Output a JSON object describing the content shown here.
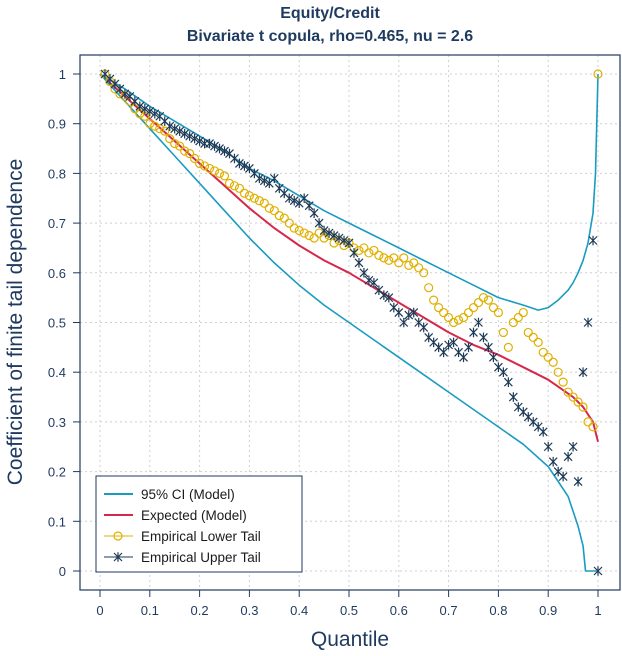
{
  "chart_data": {
    "type": "line",
    "title": "Equity/Credit",
    "subtitle": "Bivariate t copula, rho=0.465, nu = 2.6",
    "xlabel": "Quantile",
    "ylabel": "Coefficient of finite tail dependence",
    "xlim": [
      0,
      1
    ],
    "ylim": [
      0,
      1
    ],
    "x_ticks": [
      "0",
      "0.1",
      "0.2",
      "0.3",
      "0.4",
      "0.5",
      "0.6",
      "0.7",
      "0.8",
      "0.9",
      "1"
    ],
    "y_ticks": [
      "0",
      "0.1",
      "0.2",
      "0.3",
      "0.4",
      "0.5",
      "0.6",
      "0.7",
      "0.8",
      "0.9",
      "1"
    ],
    "grid": true,
    "legend_position": "bottom-left",
    "legend": [
      {
        "label": "95% CI (Model)",
        "color": "#1a9bc0",
        "marker": "line"
      },
      {
        "label": "Expected (Model)",
        "color": "#d6284a",
        "marker": "line"
      },
      {
        "label": "Empirical Lower Tail",
        "color": "#e0b000",
        "marker": "circle"
      },
      {
        "label": "Empirical Upper Tail",
        "color": "#1e3a56",
        "marker": "star"
      }
    ],
    "series": [
      {
        "name": "Expected (Model)",
        "x": [
          0,
          0.05,
          0.1,
          0.15,
          0.2,
          0.25,
          0.3,
          0.35,
          0.4,
          0.45,
          0.5,
          0.55,
          0.6,
          0.65,
          0.7,
          0.75,
          0.8,
          0.85,
          0.9,
          0.95,
          0.97,
          0.99,
          1.0
        ],
        "y": [
          1.0,
          0.955,
          0.91,
          0.865,
          0.82,
          0.775,
          0.73,
          0.69,
          0.655,
          0.625,
          0.6,
          0.57,
          0.54,
          0.51,
          0.48,
          0.455,
          0.435,
          0.41,
          0.385,
          0.35,
          0.33,
          0.3,
          0.26
        ]
      },
      {
        "name": "95% CI Upper (Model)",
        "x": [
          0,
          0.05,
          0.1,
          0.15,
          0.2,
          0.25,
          0.3,
          0.35,
          0.4,
          0.45,
          0.5,
          0.55,
          0.6,
          0.65,
          0.7,
          0.75,
          0.8,
          0.85,
          0.88,
          0.9,
          0.92,
          0.94,
          0.95,
          0.96,
          0.97,
          0.98,
          0.99,
          0.995,
          1.0
        ],
        "y": [
          1.0,
          0.97,
          0.935,
          0.905,
          0.875,
          0.845,
          0.81,
          0.785,
          0.755,
          0.725,
          0.7,
          0.675,
          0.65,
          0.625,
          0.6,
          0.575,
          0.55,
          0.535,
          0.525,
          0.53,
          0.545,
          0.565,
          0.58,
          0.6,
          0.625,
          0.66,
          0.72,
          0.8,
          1.0
        ]
      },
      {
        "name": "95% CI Lower (Model)",
        "x": [
          0,
          0.05,
          0.1,
          0.15,
          0.2,
          0.25,
          0.3,
          0.35,
          0.4,
          0.45,
          0.5,
          0.55,
          0.6,
          0.65,
          0.7,
          0.75,
          0.8,
          0.85,
          0.9,
          0.92,
          0.94,
          0.95,
          0.96,
          0.97,
          0.975,
          0.98,
          0.99,
          1.0
        ],
        "y": [
          1.0,
          0.945,
          0.89,
          0.835,
          0.78,
          0.725,
          0.67,
          0.62,
          0.575,
          0.535,
          0.5,
          0.465,
          0.43,
          0.395,
          0.36,
          0.325,
          0.29,
          0.255,
          0.21,
          0.18,
          0.15,
          0.12,
          0.09,
          0.05,
          0.0,
          0.0,
          0.0,
          0.0
        ]
      },
      {
        "name": "Empirical Lower Tail",
        "x": [
          0.01,
          0.02,
          0.03,
          0.04,
          0.05,
          0.06,
          0.07,
          0.08,
          0.09,
          0.1,
          0.11,
          0.12,
          0.13,
          0.14,
          0.15,
          0.16,
          0.17,
          0.18,
          0.19,
          0.2,
          0.21,
          0.22,
          0.23,
          0.24,
          0.25,
          0.26,
          0.27,
          0.28,
          0.29,
          0.3,
          0.31,
          0.32,
          0.33,
          0.34,
          0.35,
          0.36,
          0.37,
          0.38,
          0.39,
          0.4,
          0.41,
          0.42,
          0.43,
          0.44,
          0.45,
          0.46,
          0.47,
          0.48,
          0.49,
          0.5,
          0.51,
          0.52,
          0.53,
          0.54,
          0.55,
          0.56,
          0.57,
          0.58,
          0.59,
          0.6,
          0.61,
          0.62,
          0.63,
          0.64,
          0.65,
          0.66,
          0.67,
          0.68,
          0.69,
          0.7,
          0.71,
          0.72,
          0.73,
          0.74,
          0.75,
          0.76,
          0.77,
          0.78,
          0.79,
          0.8,
          0.81,
          0.82,
          0.83,
          0.84,
          0.85,
          0.86,
          0.87,
          0.88,
          0.89,
          0.9,
          0.91,
          0.92,
          0.93,
          0.94,
          0.95,
          0.96,
          0.97,
          0.98,
          0.99,
          1.0
        ],
        "y": [
          1.0,
          0.985,
          0.97,
          0.96,
          0.955,
          0.945,
          0.93,
          0.92,
          0.915,
          0.9,
          0.895,
          0.89,
          0.885,
          0.87,
          0.86,
          0.855,
          0.845,
          0.84,
          0.83,
          0.82,
          0.815,
          0.81,
          0.805,
          0.8,
          0.795,
          0.78,
          0.775,
          0.77,
          0.76,
          0.755,
          0.75,
          0.745,
          0.74,
          0.73,
          0.725,
          0.715,
          0.71,
          0.7,
          0.69,
          0.685,
          0.68,
          0.675,
          0.67,
          0.68,
          0.67,
          0.675,
          0.66,
          0.665,
          0.655,
          0.66,
          0.65,
          0.645,
          0.65,
          0.64,
          0.645,
          0.635,
          0.63,
          0.625,
          0.63,
          0.62,
          0.63,
          0.615,
          0.62,
          0.61,
          0.6,
          0.57,
          0.545,
          0.53,
          0.52,
          0.51,
          0.5,
          0.505,
          0.51,
          0.52,
          0.53,
          0.54,
          0.55,
          0.545,
          0.53,
          0.52,
          0.48,
          0.45,
          0.5,
          0.51,
          0.52,
          0.48,
          0.47,
          0.46,
          0.44,
          0.43,
          0.42,
          0.4,
          0.38,
          0.36,
          0.35,
          0.34,
          0.33,
          0.3,
          0.29,
          1.0
        ]
      },
      {
        "name": "Empirical Upper Tail",
        "x": [
          0.01,
          0.02,
          0.03,
          0.04,
          0.05,
          0.06,
          0.07,
          0.08,
          0.09,
          0.1,
          0.11,
          0.12,
          0.13,
          0.14,
          0.15,
          0.16,
          0.17,
          0.18,
          0.19,
          0.2,
          0.21,
          0.22,
          0.23,
          0.24,
          0.25,
          0.26,
          0.27,
          0.28,
          0.29,
          0.3,
          0.31,
          0.32,
          0.33,
          0.34,
          0.35,
          0.36,
          0.37,
          0.38,
          0.39,
          0.4,
          0.41,
          0.42,
          0.43,
          0.44,
          0.45,
          0.46,
          0.47,
          0.48,
          0.49,
          0.5,
          0.51,
          0.52,
          0.53,
          0.54,
          0.55,
          0.56,
          0.57,
          0.58,
          0.59,
          0.6,
          0.61,
          0.62,
          0.63,
          0.64,
          0.65,
          0.66,
          0.67,
          0.68,
          0.69,
          0.7,
          0.71,
          0.72,
          0.73,
          0.74,
          0.75,
          0.76,
          0.77,
          0.78,
          0.79,
          0.8,
          0.81,
          0.82,
          0.83,
          0.84,
          0.85,
          0.86,
          0.87,
          0.88,
          0.89,
          0.9,
          0.91,
          0.92,
          0.93,
          0.94,
          0.95,
          0.96,
          0.97,
          0.98,
          0.99,
          1.0
        ],
        "y": [
          1.0,
          0.99,
          0.98,
          0.97,
          0.96,
          0.955,
          0.945,
          0.935,
          0.93,
          0.925,
          0.92,
          0.915,
          0.905,
          0.895,
          0.89,
          0.885,
          0.88,
          0.875,
          0.87,
          0.865,
          0.86,
          0.86,
          0.855,
          0.85,
          0.845,
          0.84,
          0.83,
          0.82,
          0.815,
          0.81,
          0.8,
          0.79,
          0.785,
          0.78,
          0.79,
          0.77,
          0.76,
          0.75,
          0.745,
          0.74,
          0.75,
          0.735,
          0.72,
          0.7,
          0.685,
          0.68,
          0.675,
          0.67,
          0.665,
          0.66,
          0.64,
          0.62,
          0.6,
          0.585,
          0.58,
          0.565,
          0.555,
          0.55,
          0.53,
          0.52,
          0.5,
          0.515,
          0.52,
          0.5,
          0.49,
          0.47,
          0.46,
          0.45,
          0.44,
          0.455,
          0.46,
          0.44,
          0.43,
          0.45,
          0.48,
          0.5,
          0.47,
          0.45,
          0.43,
          0.41,
          0.4,
          0.38,
          0.35,
          0.33,
          0.32,
          0.31,
          0.3,
          0.29,
          0.28,
          0.25,
          0.22,
          0.2,
          0.19,
          0.23,
          0.25,
          0.18,
          0.4,
          0.5,
          0.665,
          0.0
        ]
      }
    ]
  },
  "colors": {
    "ci": "#1a9bc0",
    "expected": "#d6284a",
    "lower_tail": "#e0b000",
    "upper_tail": "#1e3a56",
    "grid": "#cfcfcf",
    "text": "#1f3a5f"
  }
}
